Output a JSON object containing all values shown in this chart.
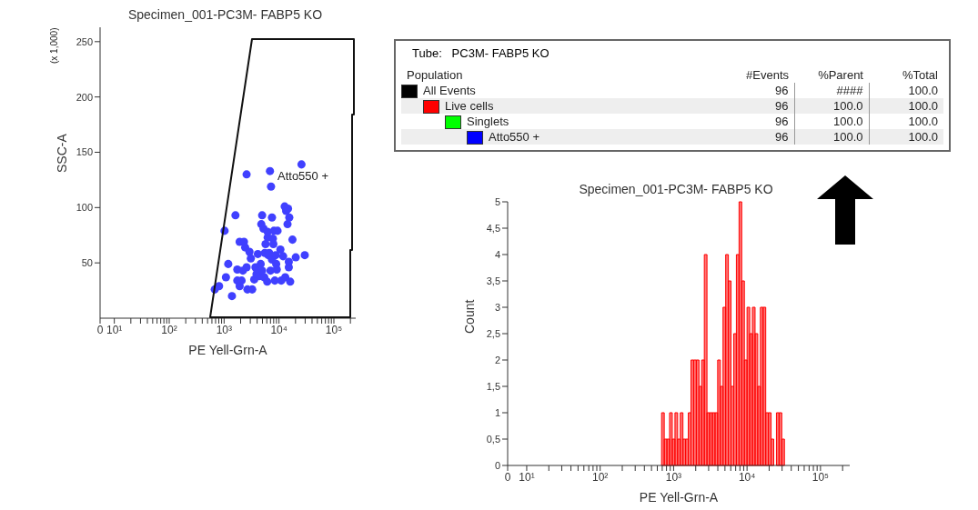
{
  "chart_data": [
    {
      "type": "scatter",
      "title": "Specimen_001-PC3M- FABP5 KO",
      "xlabel": "PE Yell-Grn-A",
      "ylabel": "SSC-A",
      "log": "x",
      "xlim": [
        0,
        250000
      ],
      "ylim": [
        0,
        263
      ],
      "xticks": [
        0,
        {
          "value": 10,
          "label": "10¹"
        },
        {
          "value": 20,
          "label": null
        },
        {
          "value": 30,
          "label": null
        },
        {
          "value": 40,
          "label": null
        },
        {
          "value": 50,
          "label": null
        },
        {
          "value": 60,
          "label": null
        },
        {
          "value": 70,
          "label": null
        },
        {
          "value": 80,
          "label": null
        },
        {
          "value": 90,
          "label": null
        },
        {
          "value": 100,
          "label": "10²"
        },
        {
          "value": 200,
          "label": null
        },
        {
          "value": 300,
          "label": null
        },
        {
          "value": 400,
          "label": null
        },
        {
          "value": 500,
          "label": null
        },
        {
          "value": 600,
          "label": null
        },
        {
          "value": 700,
          "label": null
        },
        {
          "value": 800,
          "label": null
        },
        {
          "value": 900,
          "label": null
        },
        {
          "value": 1000,
          "label": "10³"
        },
        {
          "value": 2000,
          "label": null
        },
        {
          "value": 3000,
          "label": null
        },
        {
          "value": 4000,
          "label": null
        },
        {
          "value": 5000,
          "label": null
        },
        {
          "value": 6000,
          "label": null
        },
        {
          "value": 7000,
          "label": null
        },
        {
          "value": 8000,
          "label": null
        },
        {
          "value": 9000,
          "label": null
        },
        {
          "value": 10000,
          "label": "10⁴"
        },
        {
          "value": 20000,
          "label": null
        },
        {
          "value": 30000,
          "label": null
        },
        {
          "value": 40000,
          "label": null
        },
        {
          "value": 50000,
          "label": null
        },
        {
          "value": 60000,
          "label": null
        },
        {
          "value": 70000,
          "label": null
        },
        {
          "value": 80000,
          "label": null
        },
        {
          "value": 90000,
          "label": null
        },
        {
          "value": 100000,
          "label": "10⁵"
        },
        {
          "value": 200000,
          "label": null
        }
      ],
      "yticks": [
        50,
        100,
        150,
        200,
        250
      ],
      "annotations": [
        "Atto550 +",
        "(x 1,000)"
      ],
      "series": [
        {
          "type": "scatter",
          "color": "#4040ff",
          "x": [
            676,
            810,
            1020,
            1080,
            1190,
            1390,
            1610,
            1740,
            1740,
            1920,
            1920,
            2080,
            2200,
            2300,
            2420,
            2570,
            2570,
            2660,
            2900,
            3070,
            3250,
            3540,
            3720,
            3900,
            4120,
            4380,
            4640,
            4760,
            4930,
            4930,
            5220,
            5400,
            5530,
            5690,
            6100,
            6220,
            6220,
            6380,
            6630,
            6850,
            7000,
            7160,
            7450,
            7450,
            7740,
            7900,
            8100,
            8400,
            8700,
            8900,
            9100,
            9400,
            10600,
            11000,
            11900,
            12700,
            13000,
            13500,
            14300,
            14600,
            15100,
            15100,
            15400,
            16000,
            17600,
            20200,
            25700,
            29500
          ],
          "values": [
            26,
            29,
            79,
            37,
            49,
            20,
            93,
            44,
            34,
            69,
            29,
            34,
            43,
            69,
            64,
            130,
            46,
            26,
            60,
            54,
            26,
            35,
            46,
            40,
            58,
            38,
            49,
            85,
            93,
            43,
            81,
            37,
            59,
            67,
            33,
            73,
            78,
            57,
            59,
            133,
            43,
            119,
            91,
            53,
            72,
            67,
            79,
            34,
            57,
            49,
            44,
            79,
            62,
            34,
            56,
            101,
            37,
            97,
            85,
            99,
            46,
            51,
            91,
            33,
            71,
            55,
            139,
            57
          ]
        }
      ]
    },
    {
      "type": "other",
      "title": "Tube:   PC3M- FABP5 KO",
      "annotations": [
        "Population",
        "#Events",
        "%Parent",
        "%Total"
      ],
      "categories": [
        "All Events",
        "Live cells",
        "Singlets",
        "Atto550 +"
      ],
      "colors": [
        "#000000",
        "#ff0000",
        "#00ff00",
        "#0000ff"
      ],
      "cell_labels": [
        [
          "96",
          "####",
          "100.0"
        ],
        [
          "96",
          "100.0",
          "100.0"
        ],
        [
          "96",
          "100.0",
          "100.0"
        ],
        [
          "96",
          "100.0",
          "100.0"
        ]
      ]
    },
    {
      "type": "histogram",
      "title": "Specimen_001-PC3M- FABP5 KO",
      "xlabel": "PE Yell-Grn-A",
      "ylabel": "Count",
      "log": "x",
      "color": "#ff0000",
      "xlim": [
        0,
        250000
      ],
      "ylim": [
        0,
        5
      ],
      "xticks": [
        0,
        {
          "value": 10,
          "label": "10¹"
        },
        {
          "value": 20,
          "label": null
        },
        {
          "value": 30,
          "label": null
        },
        {
          "value": 40,
          "label": null
        },
        {
          "value": 50,
          "label": null
        },
        {
          "value": 60,
          "label": null
        },
        {
          "value": 70,
          "label": null
        },
        {
          "value": 80,
          "label": null
        },
        {
          "value": 90,
          "label": null
        },
        {
          "value": 100,
          "label": "10²"
        },
        {
          "value": 200,
          "label": null
        },
        {
          "value": 300,
          "label": null
        },
        {
          "value": 400,
          "label": null
        },
        {
          "value": 500,
          "label": null
        },
        {
          "value": 600,
          "label": null
        },
        {
          "value": 700,
          "label": null
        },
        {
          "value": 800,
          "label": null
        },
        {
          "value": 900,
          "label": null
        },
        {
          "value": 1000,
          "label": "10³"
        },
        {
          "value": 2000,
          "label": null
        },
        {
          "value": 3000,
          "label": null
        },
        {
          "value": 4000,
          "label": null
        },
        {
          "value": 5000,
          "label": null
        },
        {
          "value": 6000,
          "label": null
        },
        {
          "value": 7000,
          "label": null
        },
        {
          "value": 8000,
          "label": null
        },
        {
          "value": 9000,
          "label": null
        },
        {
          "value": 10000,
          "label": "10⁴"
        },
        {
          "value": 20000,
          "label": null
        },
        {
          "value": 30000,
          "label": null
        },
        {
          "value": 40000,
          "label": null
        },
        {
          "value": 50000,
          "label": null
        },
        {
          "value": 60000,
          "label": null
        },
        {
          "value": 70000,
          "label": null
        },
        {
          "value": 80000,
          "label": null
        },
        {
          "value": 90000,
          "label": null
        },
        {
          "value": 100000,
          "label": "10⁵"
        },
        {
          "value": 200000,
          "label": null
        }
      ],
      "yticks": [
        0,
        {
          "value": 0.5,
          "label": "0,5"
        },
        1,
        {
          "value": 1.5,
          "label": "1,5"
        },
        2,
        {
          "value": 2.5,
          "label": "2,5"
        },
        3,
        {
          "value": 3.5,
          "label": "3,5"
        },
        4,
        {
          "value": 4.5,
          "label": "4,5"
        },
        5
      ],
      "bins": [
        686,
        746,
        811,
        882,
        959,
        1043,
        1134,
        1233,
        1340,
        1458,
        1585,
        1723,
        1874,
        2038,
        2216,
        2409,
        2620,
        2848,
        3097,
        3368,
        3662,
        3981,
        4329,
        4707,
        5118,
        5566,
        6052,
        6580,
        7155,
        7780,
        8460,
        9199,
        10000,
        10873,
        11823,
        12856,
        13979,
        15200,
        16528,
        17972,
        19542,
        21250,
        23106,
        25119,
        27312,
        29698,
        32292
      ],
      "values": [
        1,
        0.5,
        0.5,
        1,
        0.5,
        1,
        0.5,
        1,
        0.5,
        0.5,
        1,
        2,
        2,
        2,
        1.5,
        2,
        4,
        1,
        1,
        1,
        1,
        2,
        1.5,
        3,
        4,
        3.5,
        1.5,
        2.5,
        4,
        5,
        3.5,
        2,
        3,
        2.5,
        3,
        2.5,
        1.5,
        3,
        3,
        1,
        1,
        0.5,
        0,
        1,
        1,
        0.5
      ]
    }
  ]
}
